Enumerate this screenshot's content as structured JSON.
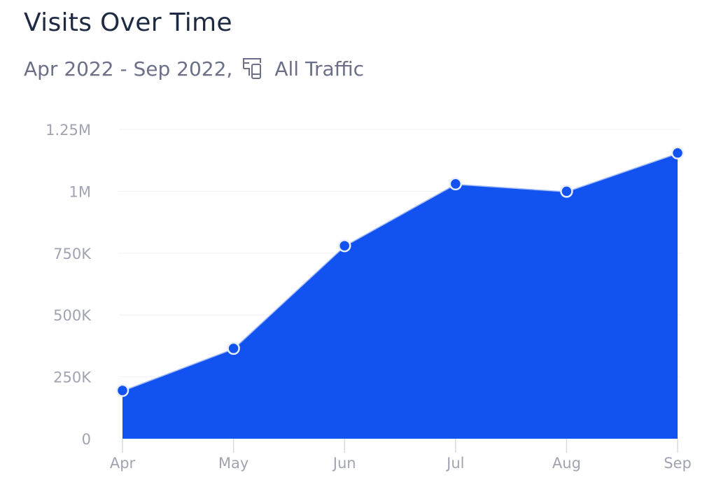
{
  "header": {
    "title": "Visits Over Time",
    "date_range": "Apr 2022 - Sep 2022,",
    "device_icon": "devices-icon",
    "segment": "All Traffic"
  },
  "chart_data": {
    "type": "area",
    "categories": [
      "Apr",
      "May",
      "Jun",
      "Jul",
      "Aug",
      "Sep"
    ],
    "values": [
      195000,
      365000,
      780000,
      1030000,
      1000000,
      1155000
    ],
    "ylim": [
      0,
      1250000
    ],
    "yticks": [
      0,
      250000,
      500000,
      750000,
      1000000,
      1250000
    ],
    "ytick_labels": [
      "0",
      "250K",
      "500K",
      "750K",
      "1M",
      "1.25M"
    ],
    "grid": true,
    "color": "#1152f0",
    "legend": "none"
  }
}
